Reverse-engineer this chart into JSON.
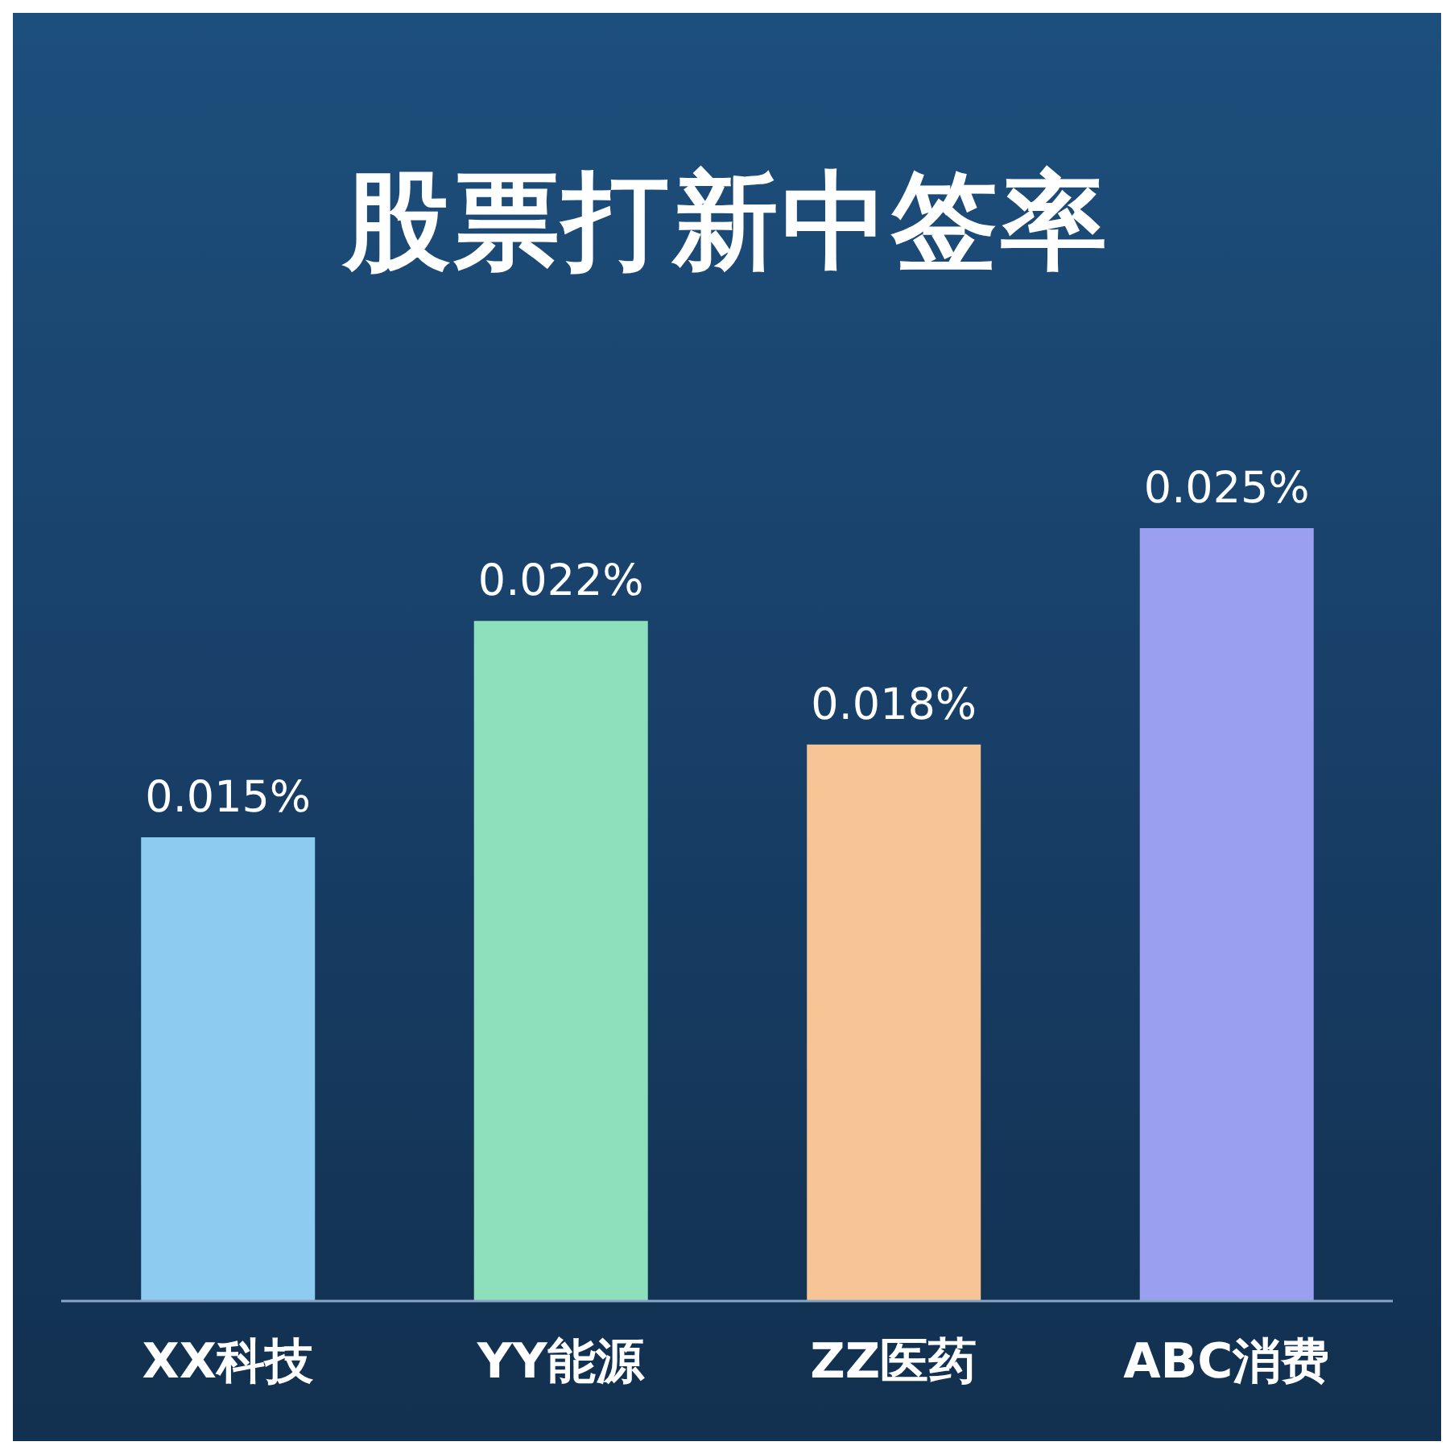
{
  "chart_data": {
    "type": "bar",
    "title": "股票打新中签率",
    "categories": [
      "XX科技",
      "YY能源",
      "ZZ医药",
      "ABC消费"
    ],
    "values": [
      0.015,
      0.022,
      0.018,
      0.025
    ],
    "colors": [
      "#8ecbf0",
      "#8ee0bc",
      "#f7c496",
      "#9b9ff0"
    ],
    "value_labels": [
      "0.015%",
      "0.022%",
      "0.018%",
      "0.025%"
    ]
  }
}
